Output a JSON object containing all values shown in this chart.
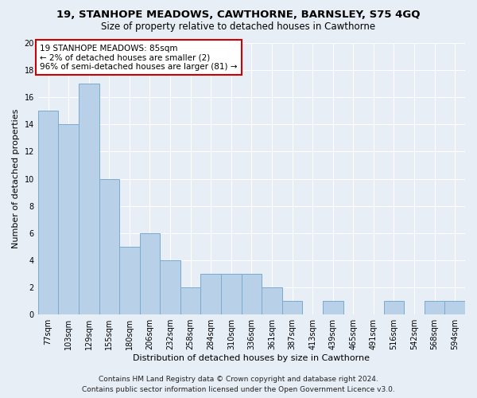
{
  "title": "19, STANHOPE MEADOWS, CAWTHORNE, BARNSLEY, S75 4GQ",
  "subtitle": "Size of property relative to detached houses in Cawthorne",
  "xlabel": "Distribution of detached houses by size in Cawthorne",
  "ylabel": "Number of detached properties",
  "categories": [
    "77sqm",
    "103sqm",
    "129sqm",
    "155sqm",
    "180sqm",
    "206sqm",
    "232sqm",
    "258sqm",
    "284sqm",
    "310sqm",
    "336sqm",
    "361sqm",
    "387sqm",
    "413sqm",
    "439sqm",
    "465sqm",
    "491sqm",
    "516sqm",
    "542sqm",
    "568sqm",
    "594sqm"
  ],
  "values": [
    15,
    14,
    17,
    10,
    5,
    6,
    4,
    2,
    3,
    3,
    3,
    2,
    1,
    0,
    1,
    0,
    0,
    1,
    0,
    1,
    1
  ],
  "bar_color": "#b8d0e8",
  "bar_edgecolor": "#7aaad0",
  "annotation_box_text": "19 STANHOPE MEADOWS: 85sqm\n← 2% of detached houses are smaller (2)\n96% of semi-detached houses are larger (81) →",
  "annotation_box_color": "#cc0000",
  "annotation_box_fill": "#ffffff",
  "ylim": [
    0,
    20
  ],
  "yticks": [
    0,
    2,
    4,
    6,
    8,
    10,
    12,
    14,
    16,
    18,
    20
  ],
  "footer_line1": "Contains HM Land Registry data © Crown copyright and database right 2024.",
  "footer_line2": "Contains public sector information licensed under the Open Government Licence v3.0.",
  "background_color": "#e8eef6",
  "grid_color": "#ffffff",
  "title_fontsize": 9.5,
  "subtitle_fontsize": 8.5,
  "tick_fontsize": 7,
  "xlabel_fontsize": 8,
  "ylabel_fontsize": 8,
  "annotation_fontsize": 7.5,
  "footer_fontsize": 6.5
}
